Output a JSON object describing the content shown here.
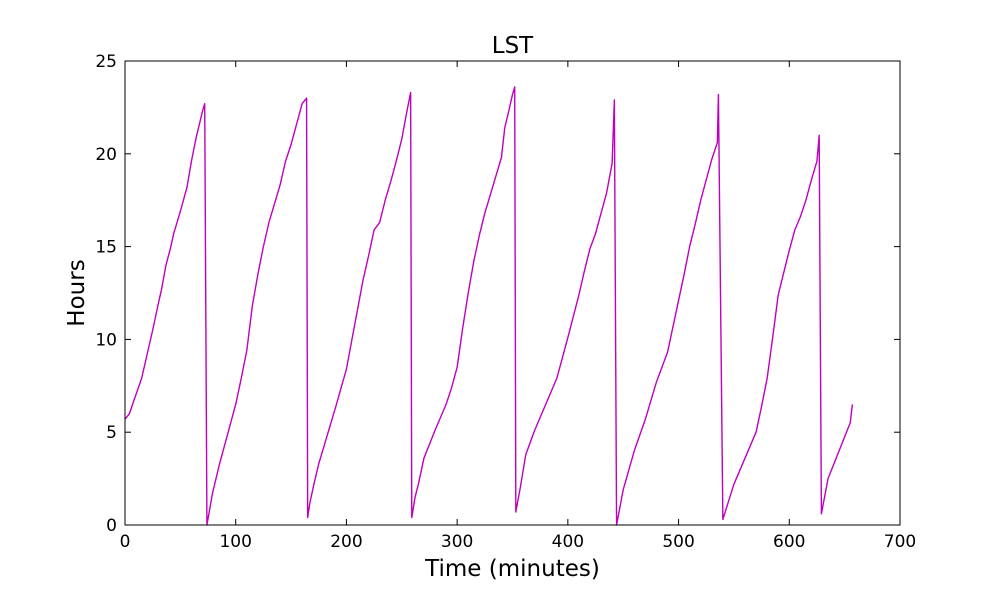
{
  "chart_data": {
    "type": "line",
    "title": "LST",
    "xlabel": "Time (minutes)",
    "ylabel": "Hours",
    "xlim": [
      0,
      700
    ],
    "ylim": [
      0,
      25
    ],
    "xticks": [
      0,
      100,
      200,
      300,
      400,
      500,
      600,
      700
    ],
    "yticks": [
      0,
      5,
      10,
      15,
      20,
      25
    ],
    "grid": false,
    "line_color": "#bf00bf",
    "series": [
      {
        "name": "",
        "x": [
          0,
          4,
          8,
          15,
          25,
          30,
          33,
          37,
          41,
          44,
          50,
          56,
          60,
          64,
          70,
          72,
          74,
          79,
          85,
          100,
          105,
          110,
          115,
          120,
          125,
          130,
          135,
          140,
          145,
          150,
          155,
          160,
          164,
          165,
          167,
          171,
          175,
          180,
          185,
          190,
          200,
          205,
          210,
          215,
          220,
          225,
          230,
          235,
          240,
          245,
          250,
          255,
          258,
          259,
          262,
          265,
          270,
          280,
          290,
          295,
          300,
          305,
          310,
          315,
          320,
          325,
          330,
          335,
          340,
          343,
          347,
          350,
          352,
          353,
          357,
          362,
          370,
          380,
          390,
          400,
          410,
          415,
          420,
          425,
          430,
          435,
          440,
          442,
          444,
          450,
          460,
          470,
          480,
          490,
          500,
          505,
          510,
          515,
          520,
          525,
          530,
          535,
          536,
          540,
          550,
          560,
          570,
          575,
          580,
          585,
          590,
          595,
          600,
          605,
          610,
          615,
          620,
          625,
          627,
          629,
          635,
          645,
          655,
          657
        ],
        "y": [
          5.7,
          6.0,
          6.7,
          7.9,
          10.5,
          11.9,
          12.7,
          14.0,
          14.9,
          15.7,
          16.9,
          18.2,
          19.6,
          20.8,
          22.3,
          22.7,
          0.0,
          1.7,
          3.2,
          6.5,
          7.9,
          9.4,
          11.8,
          13.5,
          15.0,
          16.3,
          17.3,
          18.3,
          19.6,
          20.5,
          21.6,
          22.7,
          23.0,
          0.4,
          1.2,
          2.3,
          3.3,
          4.3,
          5.3,
          6.3,
          8.4,
          10.0,
          11.6,
          13.2,
          14.5,
          15.9,
          16.3,
          17.5,
          18.5,
          19.6,
          20.8,
          22.4,
          23.3,
          0.4,
          1.5,
          2.2,
          3.6,
          5.1,
          6.5,
          7.4,
          8.5,
          10.6,
          12.5,
          14.2,
          15.6,
          16.8,
          17.8,
          18.8,
          19.8,
          21.4,
          22.4,
          23.2,
          23.6,
          0.7,
          2.0,
          3.8,
          5.1,
          6.5,
          7.9,
          10.1,
          12.4,
          13.7,
          14.9,
          15.7,
          16.8,
          17.9,
          19.5,
          22.9,
          0.0,
          1.9,
          4.0,
          5.7,
          7.7,
          9.3,
          12.1,
          13.5,
          15.0,
          16.2,
          17.5,
          18.6,
          19.7,
          20.6,
          23.2,
          0.3,
          2.2,
          3.6,
          5.0,
          6.4,
          7.9,
          10.1,
          12.4,
          13.6,
          14.8,
          15.9,
          16.6,
          17.5,
          18.6,
          19.6,
          21.0,
          0.6,
          2.5,
          4.0,
          5.5,
          6.5
        ]
      }
    ]
  }
}
